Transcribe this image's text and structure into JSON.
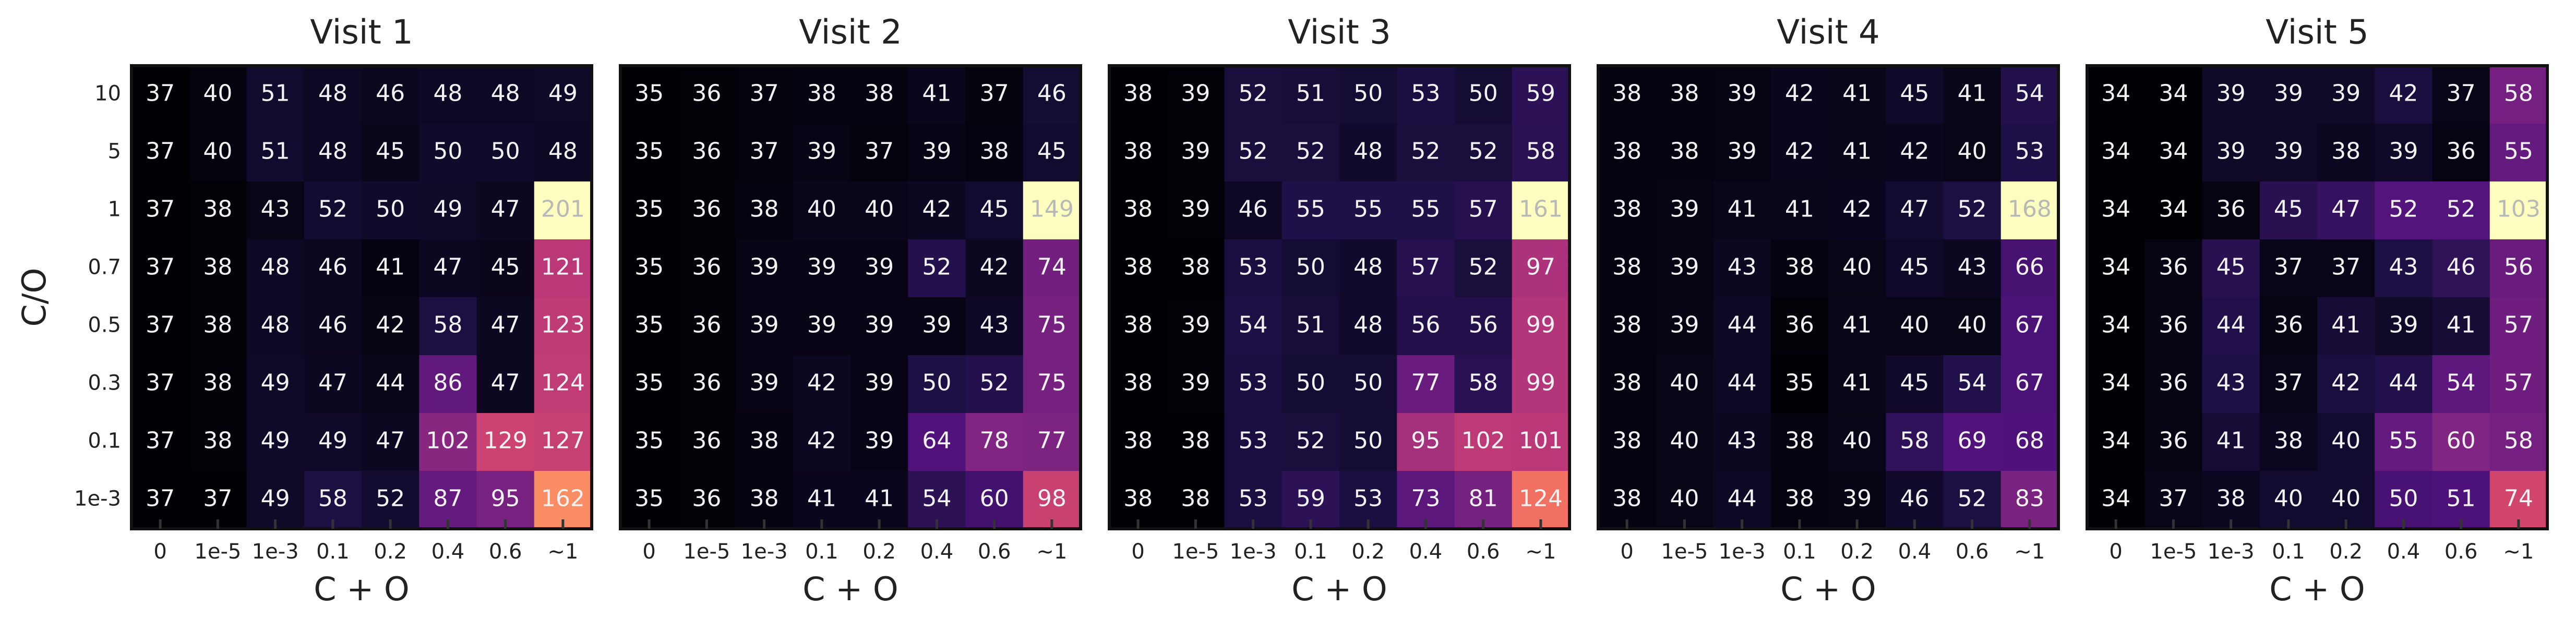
{
  "chart_data": [
    {
      "type": "heatmap",
      "title": "Visit 1",
      "x_label": "C + O",
      "y_label": "C/O",
      "colormap": "magma",
      "x_categories": [
        "0",
        "1e-5",
        "1e-3",
        "0.1",
        "0.2",
        "0.4",
        "0.6",
        "~1"
      ],
      "y_categories": [
        "10",
        "5",
        "1",
        "0.7",
        "0.5",
        "0.3",
        "0.1",
        "1e-3"
      ],
      "values": [
        [
          37,
          40,
          51,
          48,
          46,
          48,
          48,
          49
        ],
        [
          37,
          40,
          51,
          48,
          45,
          50,
          50,
          48
        ],
        [
          37,
          38,
          43,
          52,
          50,
          49,
          47,
          201
        ],
        [
          37,
          38,
          48,
          46,
          41,
          47,
          45,
          121
        ],
        [
          37,
          38,
          48,
          46,
          42,
          58,
          47,
          123
        ],
        [
          37,
          38,
          49,
          47,
          44,
          86,
          47,
          124
        ],
        [
          37,
          38,
          49,
          49,
          47,
          102,
          129,
          127
        ],
        [
          37,
          37,
          49,
          58,
          52,
          87,
          95,
          162
        ]
      ]
    },
    {
      "type": "heatmap",
      "title": "Visit 2",
      "x_label": "C + O",
      "colormap": "magma",
      "x_categories": [
        "0",
        "1e-5",
        "1e-3",
        "0.1",
        "0.2",
        "0.4",
        "0.6",
        "~1"
      ],
      "values": [
        [
          35,
          36,
          37,
          38,
          38,
          41,
          37,
          46
        ],
        [
          35,
          36,
          37,
          39,
          37,
          39,
          38,
          45
        ],
        [
          35,
          36,
          38,
          40,
          40,
          42,
          45,
          149
        ],
        [
          35,
          36,
          39,
          39,
          39,
          52,
          42,
          74
        ],
        [
          35,
          36,
          39,
          39,
          39,
          39,
          43,
          75
        ],
        [
          35,
          36,
          39,
          42,
          39,
          50,
          52,
          75
        ],
        [
          35,
          36,
          38,
          42,
          39,
          64,
          78,
          77
        ],
        [
          35,
          36,
          38,
          41,
          41,
          54,
          60,
          98
        ]
      ]
    },
    {
      "type": "heatmap",
      "title": "Visit 3",
      "x_label": "C + O",
      "colormap": "magma",
      "x_categories": [
        "0",
        "1e-5",
        "1e-3",
        "0.1",
        "0.2",
        "0.4",
        "0.6",
        "~1"
      ],
      "values": [
        [
          38,
          39,
          52,
          51,
          50,
          53,
          50,
          59
        ],
        [
          38,
          39,
          52,
          52,
          48,
          52,
          52,
          58
        ],
        [
          38,
          39,
          46,
          55,
          55,
          55,
          57,
          161
        ],
        [
          38,
          38,
          53,
          50,
          48,
          57,
          52,
          97
        ],
        [
          38,
          39,
          54,
          51,
          48,
          56,
          56,
          99
        ],
        [
          38,
          39,
          53,
          50,
          50,
          77,
          58,
          99
        ],
        [
          38,
          38,
          53,
          52,
          50,
          95,
          102,
          101
        ],
        [
          38,
          38,
          53,
          59,
          53,
          73,
          81,
          124
        ]
      ]
    },
    {
      "type": "heatmap",
      "title": "Visit 4",
      "x_label": "C + O",
      "colormap": "magma",
      "x_categories": [
        "0",
        "1e-5",
        "1e-3",
        "0.1",
        "0.2",
        "0.4",
        "0.6",
        "~1"
      ],
      "values": [
        [
          38,
          38,
          39,
          42,
          41,
          45,
          41,
          54
        ],
        [
          38,
          38,
          39,
          42,
          41,
          42,
          40,
          53
        ],
        [
          38,
          39,
          41,
          41,
          42,
          47,
          52,
          168
        ],
        [
          38,
          39,
          43,
          38,
          40,
          45,
          43,
          66
        ],
        [
          38,
          39,
          44,
          36,
          41,
          40,
          40,
          67
        ],
        [
          38,
          40,
          44,
          35,
          41,
          45,
          54,
          67
        ],
        [
          38,
          40,
          43,
          38,
          40,
          58,
          69,
          68
        ],
        [
          38,
          40,
          44,
          38,
          39,
          46,
          52,
          83
        ]
      ]
    },
    {
      "type": "heatmap",
      "title": "Visit 5",
      "x_label": "C + O",
      "colormap": "magma",
      "x_categories": [
        "0",
        "1e-5",
        "1e-3",
        "0.1",
        "0.2",
        "0.4",
        "0.6",
        "~1"
      ],
      "values": [
        [
          34,
          34,
          39,
          39,
          39,
          42,
          37,
          58
        ],
        [
          34,
          34,
          39,
          39,
          38,
          39,
          36,
          55
        ],
        [
          34,
          34,
          36,
          45,
          47,
          52,
          52,
          103
        ],
        [
          34,
          36,
          45,
          37,
          37,
          43,
          46,
          56
        ],
        [
          34,
          36,
          44,
          36,
          41,
          39,
          41,
          57
        ],
        [
          34,
          36,
          43,
          37,
          42,
          44,
          54,
          57
        ],
        [
          34,
          36,
          41,
          38,
          40,
          55,
          60,
          58
        ],
        [
          34,
          37,
          38,
          40,
          40,
          50,
          51,
          74
        ]
      ]
    }
  ]
}
